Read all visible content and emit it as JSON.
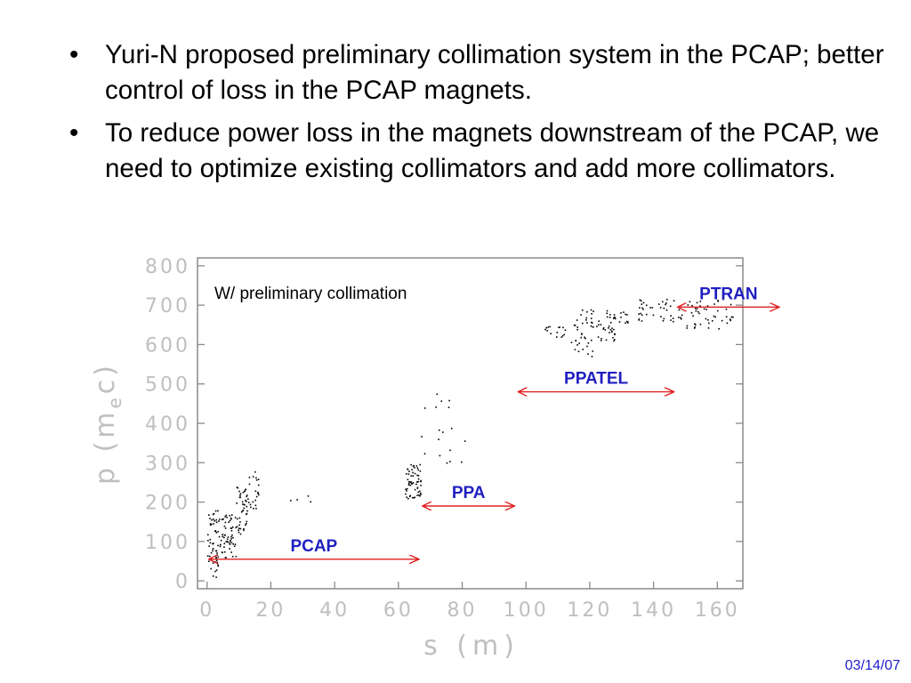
{
  "bullets": [
    "Yuri-N proposed preliminary collimation system in the PCAP; better control of loss in the PCAP magnets.",
    "To reduce power loss in the magnets downstream of the PCAP, we need to optimize existing collimators and add more collimators."
  ],
  "bullet_symbol": "•",
  "date": "03/14/07",
  "colors": {
    "accent_text": "#1f1fc0",
    "arrow": "#e02020",
    "axis": "#bfbfbf",
    "frame": "#8a8a8a"
  },
  "chart_data": {
    "type": "scatter",
    "annotation": "W/ preliminary collimation",
    "xlabel": "s (m)",
    "ylabel": "p (m",
    "ylabel_sub": "e",
    "ylabel_end": "c)",
    "xlim": [
      -3,
      168
    ],
    "ylim": [
      -20,
      820
    ],
    "xticks": [
      0,
      20,
      40,
      60,
      80,
      100,
      120,
      140,
      160
    ],
    "yticks": [
      0,
      100,
      200,
      300,
      400,
      500,
      600,
      700,
      800
    ],
    "grid": false,
    "point_clusters": [
      {
        "x": [
          0,
          4
        ],
        "y": [
          10,
          180
        ],
        "n": 60
      },
      {
        "x": [
          4,
          9
        ],
        "y": [
          60,
          170
        ],
        "n": 55
      },
      {
        "x": [
          9,
          13
        ],
        "y": [
          120,
          240
        ],
        "n": 45
      },
      {
        "x": [
          13,
          16
        ],
        "y": [
          180,
          280
        ],
        "n": 20
      },
      {
        "x": [
          25,
          36
        ],
        "y": [
          200,
          230
        ],
        "n": 4
      },
      {
        "x": [
          62,
          67
        ],
        "y": [
          210,
          300
        ],
        "n": 60
      },
      {
        "x": [
          67,
          82
        ],
        "y": [
          300,
          480
        ],
        "n": 18
      },
      {
        "x": [
          105,
          113
        ],
        "y": [
          620,
          650
        ],
        "n": 15
      },
      {
        "x": [
          114,
          121
        ],
        "y": [
          570,
          690
        ],
        "n": 40
      },
      {
        "x": [
          122,
          128
        ],
        "y": [
          610,
          690
        ],
        "n": 35
      },
      {
        "x": [
          129,
          134
        ],
        "y": [
          650,
          690
        ],
        "n": 10
      },
      {
        "x": [
          135,
          150
        ],
        "y": [
          660,
          720
        ],
        "n": 40
      },
      {
        "x": [
          150,
          165
        ],
        "y": [
          640,
          720
        ],
        "n": 45
      }
    ],
    "regions": [
      {
        "name": "PCAP",
        "x_from": 0,
        "x_to": 67,
        "y": 55
      },
      {
        "name": "PPA",
        "x_from": 67,
        "x_to": 97,
        "y": 190
      },
      {
        "name": "PPATEL",
        "x_from": 97,
        "x_to": 147,
        "y": 480
      },
      {
        "name": "PTRAN",
        "x_from": 147,
        "x_to": 180,
        "y": 695
      }
    ]
  }
}
